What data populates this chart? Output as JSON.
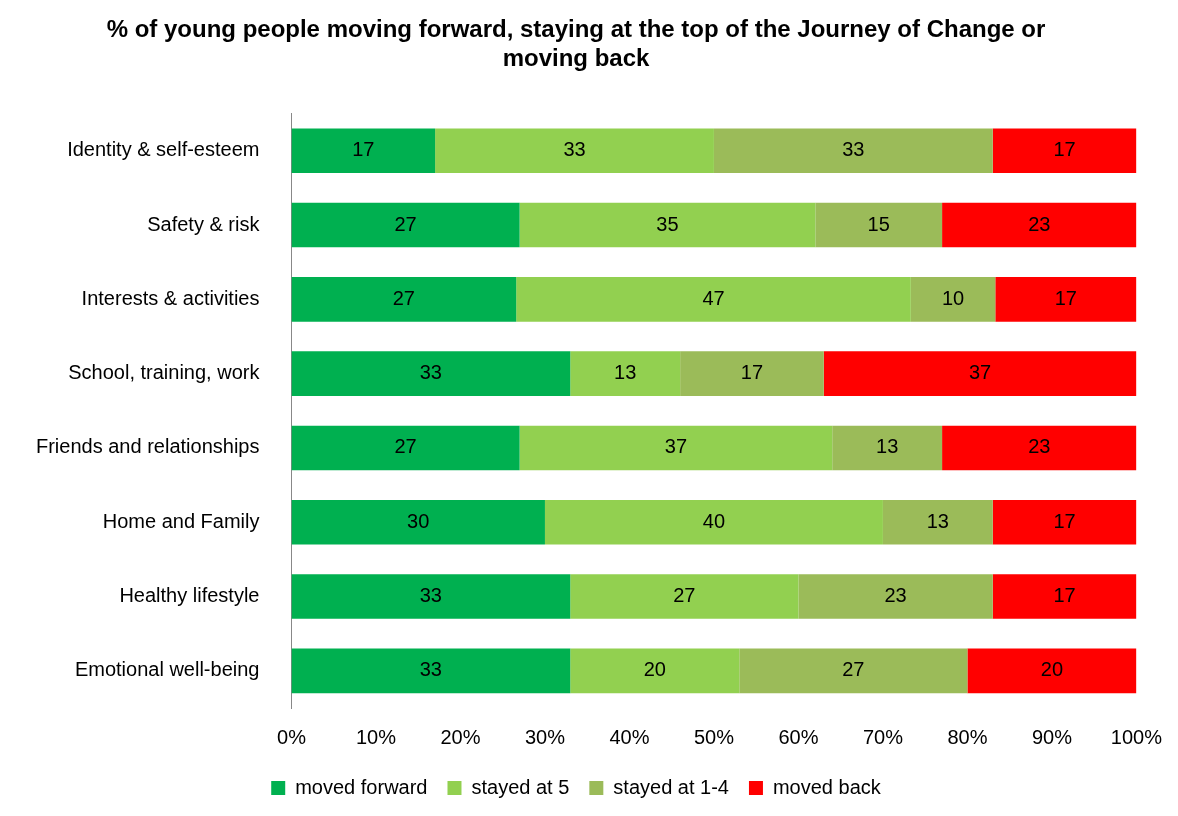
{
  "chart_data": {
    "type": "bar",
    "orientation": "horizontal",
    "stacked": true,
    "title": "% of young people moving forward, staying at the top of the Journey of Change or moving back",
    "categories": [
      "Identity & self-esteem",
      "Safety & risk",
      "Interests & activities",
      "School, training, work",
      "Friends and relationships",
      "Home and Family",
      "Healthy lifestyle",
      "Emotional well-being"
    ],
    "series": [
      {
        "name": "moved forward",
        "color": "#00b050",
        "values": [
          17,
          27,
          26.6,
          33,
          27,
          30,
          33,
          33
        ],
        "value_labels": [
          "17",
          "27",
          "27",
          "33",
          "27",
          "30",
          "33",
          "33"
        ]
      },
      {
        "name": "stayed at 5",
        "color": "#92d050",
        "values": [
          33,
          35,
          46.7,
          13,
          37,
          40,
          27,
          20
        ],
        "value_labels": [
          "33",
          "35",
          "47",
          "13",
          "37",
          "40",
          "27",
          "20"
        ]
      },
      {
        "name": "stayed at 1-4",
        "color": "#9bbb59",
        "values": [
          33,
          15,
          10,
          17,
          13,
          13,
          23,
          27
        ],
        "value_labels": [
          "33",
          "15",
          "10",
          "17",
          "13",
          "13",
          "23",
          "27"
        ]
      },
      {
        "name": "moved back",
        "color": "#ff0000",
        "values": [
          17,
          23,
          16.7,
          37,
          23,
          17,
          17,
          20
        ],
        "value_labels": [
          "17",
          "23",
          "17",
          "37",
          "23",
          "17",
          "17",
          "20"
        ]
      }
    ],
    "xlim": [
      0,
      100
    ],
    "xticks": [
      {
        "value": 0,
        "label": "0%"
      },
      {
        "value": 10,
        "label": "10%"
      },
      {
        "value": 20,
        "label": "20%"
      },
      {
        "value": 30,
        "label": "30%"
      },
      {
        "value": 40,
        "label": "40%"
      },
      {
        "value": 50,
        "label": "50%"
      },
      {
        "value": 60,
        "label": "60%"
      },
      {
        "value": 70,
        "label": "70%"
      },
      {
        "value": 80,
        "label": "80%"
      },
      {
        "value": 90,
        "label": "90%"
      },
      {
        "value": 100,
        "label": "100%"
      }
    ],
    "grid": false,
    "legend": "bottom"
  }
}
